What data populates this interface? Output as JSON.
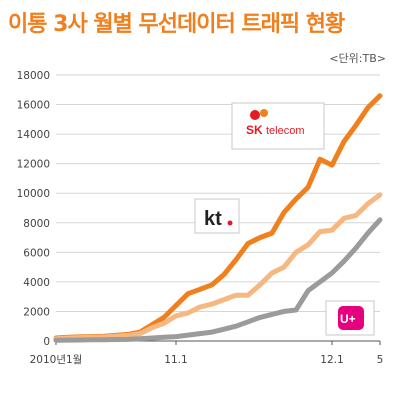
{
  "chart_data": {
    "type": "line",
    "title": "이통 3사 월별 무선데이터 트래픽 현황",
    "unit_label": "<단위:TB>",
    "ylim": [
      0,
      18000
    ],
    "yticks": [
      0,
      2000,
      4000,
      6000,
      8000,
      10000,
      12000,
      14000,
      16000,
      18000
    ],
    "x_tick_labels": [
      {
        "index": 0,
        "label": "2010년1월"
      },
      {
        "index": 10,
        "label": "11.1"
      },
      {
        "index": 23,
        "label": "12.1"
      },
      {
        "index": 27,
        "label": "5"
      }
    ],
    "grid": true,
    "series": [
      {
        "name": "SK telecom",
        "color": "#f07f1e",
        "values": [
          200,
          250,
          280,
          300,
          320,
          380,
          450,
          600,
          1100,
          1600,
          2400,
          3200,
          3500,
          3800,
          4500,
          5500,
          6600,
          7000,
          7300,
          8700,
          9600,
          10400,
          12300,
          11900,
          13500,
          14600,
          15800,
          16600
        ]
      },
      {
        "name": "kt",
        "color": "#f7b781",
        "values": [
          150,
          200,
          230,
          250,
          280,
          320,
          380,
          500,
          900,
          1200,
          1700,
          1900,
          2300,
          2500,
          2800,
          3100,
          3100,
          3800,
          4600,
          5000,
          6000,
          6500,
          7400,
          7500,
          8300,
          8500,
          9300,
          9900
        ]
      },
      {
        "name": "LG U+",
        "color": "#9b9b9b",
        "values": [
          50,
          60,
          70,
          80,
          90,
          100,
          110,
          150,
          200,
          250,
          300,
          400,
          500,
          600,
          800,
          1000,
          1300,
          1600,
          1800,
          2000,
          2100,
          3400,
          4000,
          4600,
          5400,
          6300,
          7300,
          8200
        ]
      }
    ],
    "labels": {
      "skt_sk": "SK",
      "skt_telecom": "telecom",
      "kt": "kt",
      "lgu": "U+"
    }
  }
}
